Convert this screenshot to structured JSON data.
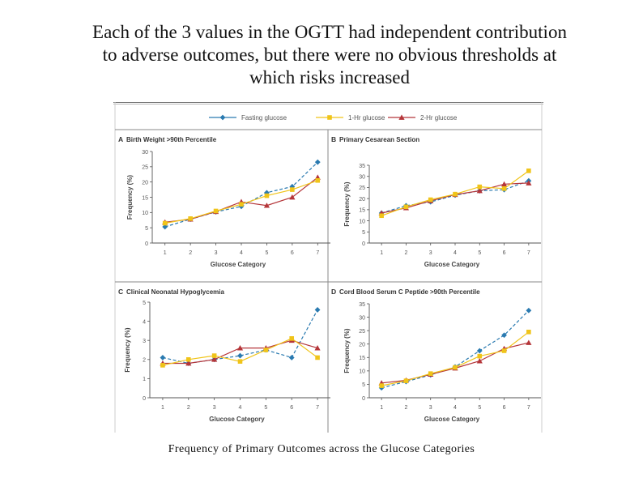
{
  "slide": {
    "title_lines": [
      "Each of  the 3 values in the OGTT had  independent contribution",
      "to adverse outcomes, but there were no obvious thresholds at",
      "which risks increased"
    ],
    "caption": "Frequency of Primary Outcomes across the Glucose Categories"
  },
  "legend": {
    "items": [
      {
        "label": "Fasting glucose",
        "marker": "diamond",
        "color": "#2a7ab0"
      },
      {
        "label": "1-Hr glucose",
        "marker": "square",
        "color": "#f0c419"
      },
      {
        "label": "2-Hr glucose",
        "marker": "triangle",
        "color": "#b5363a"
      }
    ]
  },
  "chart_data": [
    {
      "type": "line",
      "panel": "A",
      "title": "Birth Weight >90th Percentile",
      "xlabel": "Glucose Category",
      "ylabel": "Frequency (%)",
      "x": [
        1,
        2,
        3,
        4,
        5,
        6,
        7
      ],
      "ylim": [
        0,
        30
      ],
      "yticks": [
        0,
        5,
        10,
        15,
        20,
        25,
        30
      ],
      "series": [
        {
          "name": "Fasting glucose",
          "values": [
            5.3,
            7.8,
            10.2,
            12.0,
            16.5,
            18.5,
            26.5
          ]
        },
        {
          "name": "1-Hr glucose",
          "values": [
            6.5,
            8.0,
            10.5,
            12.7,
            15.5,
            17.5,
            20.5
          ]
        },
        {
          "name": "2-Hr glucose",
          "values": [
            6.8,
            7.8,
            10.3,
            13.5,
            12.3,
            15.0,
            21.5
          ]
        }
      ]
    },
    {
      "type": "line",
      "panel": "B",
      "title": "Primary Cesarean Section",
      "xlabel": "Glucose Category",
      "ylabel": "Frequency (%)",
      "x": [
        1,
        2,
        3,
        4,
        5,
        6,
        7
      ],
      "ylim": [
        0,
        35
      ],
      "yticks": [
        0,
        5,
        10,
        15,
        20,
        25,
        30,
        35
      ],
      "series": [
        {
          "name": "Fasting glucose",
          "values": [
            13.5,
            16.8,
            18.5,
            21.5,
            23.5,
            24.0,
            28.0
          ]
        },
        {
          "name": "1-Hr glucose",
          "values": [
            12.3,
            16.3,
            19.5,
            22.0,
            25.3,
            24.5,
            32.5
          ]
        },
        {
          "name": "2-Hr glucose",
          "values": [
            13.5,
            15.8,
            19.0,
            21.8,
            23.5,
            26.5,
            27.0
          ]
        }
      ]
    },
    {
      "type": "line",
      "panel": "C",
      "title": "Clinical Neonatal Hypoglycemia",
      "xlabel": "Glucose Category",
      "ylabel": "Frequency (%)",
      "x": [
        1,
        2,
        3,
        4,
        5,
        6,
        7
      ],
      "ylim": [
        0,
        5
      ],
      "yticks": [
        0,
        1,
        2,
        3,
        4,
        5
      ],
      "series": [
        {
          "name": "Fasting glucose",
          "values": [
            2.1,
            1.8,
            2.0,
            2.2,
            2.5,
            2.1,
            4.6
          ]
        },
        {
          "name": "1-Hr glucose",
          "values": [
            1.7,
            2.0,
            2.2,
            1.9,
            2.5,
            3.1,
            2.1
          ]
        },
        {
          "name": "2-Hr glucose",
          "values": [
            1.8,
            1.8,
            2.0,
            2.6,
            2.6,
            3.0,
            2.6
          ]
        }
      ]
    },
    {
      "type": "line",
      "panel": "D",
      "title": "Cord Blood Serum C Peptide >90th Percentile",
      "xlabel": "Glucose Category",
      "ylabel": "Frequency (%)",
      "x": [
        1,
        2,
        3,
        4,
        5,
        6,
        7
      ],
      "ylim": [
        0,
        35
      ],
      "yticks": [
        0,
        5,
        10,
        15,
        20,
        25,
        30,
        35
      ],
      "series": [
        {
          "name": "Fasting glucose",
          "values": [
            3.7,
            6.0,
            8.5,
            11.5,
            17.5,
            23.3,
            32.5
          ]
        },
        {
          "name": "1-Hr glucose",
          "values": [
            4.5,
            6.3,
            9.0,
            11.3,
            15.5,
            17.5,
            24.5
          ]
        },
        {
          "name": "2-Hr glucose",
          "values": [
            5.5,
            6.5,
            8.7,
            11.0,
            13.7,
            18.3,
            20.5
          ]
        }
      ]
    }
  ]
}
